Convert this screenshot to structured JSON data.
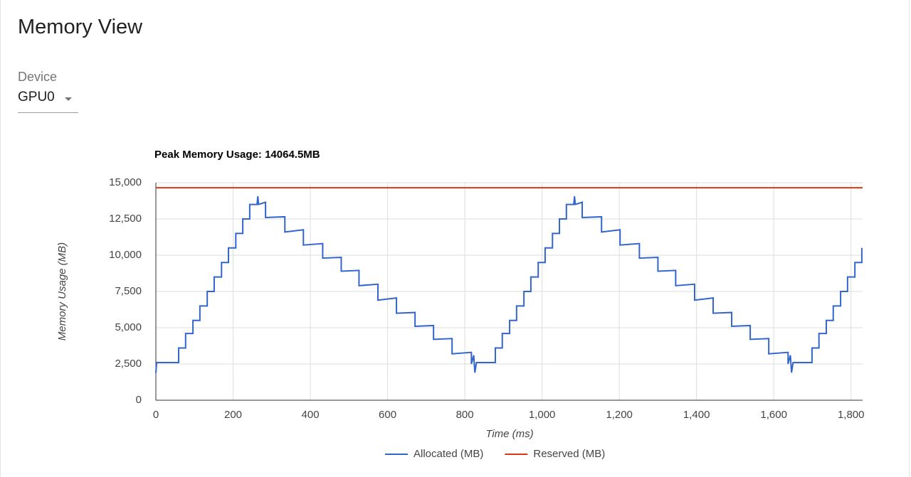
{
  "header": {
    "title": "Memory View"
  },
  "device": {
    "label": "Device",
    "value": "GPU0"
  },
  "chart_data": {
    "type": "line",
    "title": "Peak Memory Usage: 14064.5MB",
    "x_label": "Time (ms)",
    "y_label": "Memory Usage (MB)",
    "xlim": [
      0,
      1830
    ],
    "ylim": [
      0,
      15000
    ],
    "xticks": [
      0,
      200,
      400,
      600,
      800,
      {
        "value": 1000,
        "label": "1,000"
      },
      {
        "value": 1200,
        "label": "1,200"
      },
      {
        "value": 1400,
        "label": "1,400"
      },
      {
        "value": 1600,
        "label": "1,600"
      },
      {
        "value": 1800,
        "label": "1,800"
      }
    ],
    "yticks": [
      0,
      {
        "value": 2500,
        "label": "2,500"
      },
      {
        "value": 5000,
        "label": "5,000"
      },
      {
        "value": 7500,
        "label": "7,500"
      },
      {
        "value": 10000,
        "label": "10,000"
      },
      {
        "value": 12500,
        "label": "12,500"
      },
      {
        "value": 15000,
        "label": "15,000"
      }
    ],
    "grid": true,
    "legend": "bottom",
    "series": [
      {
        "name": "Allocated (MB)",
        "color": "#3366cc",
        "x": [
          0,
          2,
          59,
          59,
          77,
          77,
          96,
          96,
          114,
          114,
          133,
          133,
          151,
          151,
          170,
          170,
          188,
          188,
          207,
          207,
          225,
          225,
          243,
          243,
          262,
          264,
          266,
          284,
          284,
          334,
          334,
          382,
          382,
          432,
          432,
          480,
          480,
          526,
          526,
          575,
          575,
          623,
          623,
          671,
          671,
          719,
          719,
          767,
          767,
          817,
          817,
          823,
          826,
          830,
          879,
          879,
          897,
          897,
          916,
          916,
          934,
          934,
          953,
          953,
          971,
          971,
          990,
          990,
          1008,
          1008,
          1027,
          1027,
          1045,
          1045,
          1063,
          1063,
          1082,
          1084,
          1086,
          1104,
          1104,
          1154,
          1154,
          1202,
          1202,
          1252,
          1252,
          1300,
          1300,
          1346,
          1346,
          1395,
          1395,
          1443,
          1443,
          1491,
          1491,
          1539,
          1539,
          1587,
          1587,
          1637,
          1637,
          1643,
          1646,
          1650,
          1699,
          1699,
          1717,
          1717,
          1736,
          1736,
          1754,
          1754,
          1773,
          1773,
          1791,
          1791,
          1810,
          1810,
          1828,
          1828
        ],
        "values": [
          1900,
          2600,
          2600,
          3600,
          3600,
          4600,
          4600,
          5500,
          5500,
          6500,
          6500,
          7500,
          7500,
          8500,
          8500,
          9500,
          9500,
          10500,
          10500,
          11500,
          11500,
          12500,
          12500,
          13500,
          13500,
          14064.5,
          13500,
          13650,
          12600,
          12650,
          11600,
          11750,
          10700,
          10800,
          9800,
          9850,
          8900,
          8950,
          7900,
          8000,
          6900,
          7050,
          6000,
          6050,
          5100,
          5150,
          4200,
          4250,
          3200,
          3300,
          2500,
          3100,
          1900,
          2600,
          2600,
          3600,
          3600,
          4600,
          4600,
          5500,
          5500,
          6500,
          6500,
          7500,
          7500,
          8500,
          8500,
          9500,
          9500,
          10500,
          10500,
          11500,
          11500,
          12500,
          12500,
          13500,
          13500,
          14064.5,
          13500,
          13650,
          12600,
          12650,
          11600,
          11750,
          10700,
          10800,
          9800,
          9850,
          8900,
          8950,
          7900,
          8000,
          6900,
          7050,
          6000,
          6050,
          5100,
          5150,
          4200,
          4250,
          3200,
          3300,
          2500,
          3100,
          1900,
          2600,
          2600,
          3600,
          3600,
          4600,
          4600,
          5500,
          5500,
          6500,
          6500,
          7500,
          7500,
          8500,
          8500,
          9500,
          9500,
          10500
        ]
      },
      {
        "name": "Reserved (MB)",
        "color": "#dc3912",
        "x": [
          0,
          1830
        ],
        "values": [
          14650,
          14650
        ]
      }
    ]
  }
}
